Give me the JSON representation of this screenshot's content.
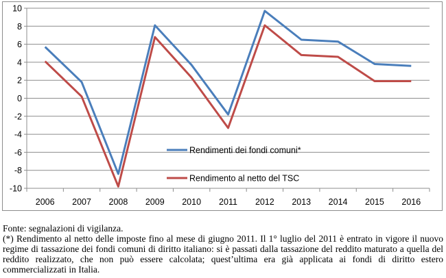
{
  "chart_data": {
    "type": "line",
    "categories": [
      "2006",
      "2007",
      "2008",
      "2009",
      "2010",
      "2011",
      "2012",
      "2013",
      "2014",
      "2015",
      "2016"
    ],
    "series": [
      {
        "name": "Rendimenti dei fondi comuni*",
        "color": "#4a7ebb",
        "values": [
          5.7,
          1.8,
          -8.4,
          8.1,
          3.7,
          -1.8,
          9.7,
          6.5,
          6.3,
          3.8,
          3.6
        ]
      },
      {
        "name": "Rendimento al netto del TSC",
        "color": "#be4b48",
        "values": [
          4.1,
          0.2,
          -9.8,
          6.8,
          2.3,
          -3.3,
          8.1,
          4.8,
          4.6,
          1.9,
          1.9
        ]
      }
    ],
    "ylim": [
      -10,
      10
    ],
    "yticks": [
      "10",
      "8",
      "6",
      "4",
      "2",
      "0",
      "-2",
      "-4",
      "-6",
      "-8",
      "-10"
    ],
    "grid": "horizontal",
    "legend_position": "bottom-right inside plot"
  },
  "notes": {
    "source": "Fonte: segnalazioni di vigilanza.",
    "footnote": "(*) Rendimento al netto delle imposte fino al mese di giugno 2011. Il 1° luglio del 2011 è entrato in vigore il nuovo regime di tassazione dei fondi comuni di diritto italiano: si è passati dalla tassazione del reddito maturato a quella del reddito realizzato, che non può essere calcolata; quest’ultima era già applicata ai fondi di diritto estero commercializzati in Italia."
  }
}
